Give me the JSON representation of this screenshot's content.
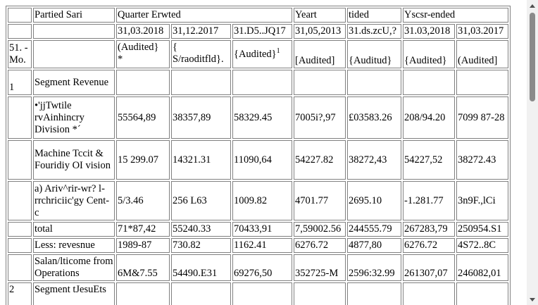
{
  "header": {
    "row1": [
      "",
      "Partied Sari",
      "Quarter Erwted",
      "Yeart",
      "tided",
      "Yscsr-ended"
    ],
    "row2": [
      "",
      "",
      "31,03.2018",
      "31,12.2017",
      "31.D5..JQ17",
      "31,05,2013",
      "31.ds.zcU,?",
      "31.03,2018",
      "31,03.2017"
    ],
    "row3": {
      "sno": "51. -\nMo.",
      "blank": "",
      "c1a": "(Audited}",
      "c1b": "*",
      "c2a": "{",
      "c2b": "S/raoditfld}.",
      "c3": "{Audited}",
      "c3sup": "1",
      "c4": "[Audited]",
      "c5": "{Auditud}",
      "c6": "{Audited}",
      "c7": "(Audited]"
    }
  },
  "rows": [
    {
      "sno": "1",
      "particular": "Segment Revenue",
      "values": [
        "",
        "",
        "",
        "",
        "",
        "",
        ""
      ]
    },
    {
      "sno": "",
      "particular": "•'jjTwtile rvAinhincry Division *´",
      "values": [
        "55564,89",
        "38357,89",
        "58329.45",
        "7005i?,97",
        "£03583.26",
        "208/94.20",
        "7099 87-28"
      ]
    },
    {
      "sno": "",
      "particular": "Machine Tccit & Fouridiy OI vision",
      "values": [
        "15 299.07",
        "14321.31",
        "11090,64",
        "54227.82",
        "38272,43",
        "54227,52",
        "38272.43"
      ]
    },
    {
      "sno": "",
      "particular": "a) Ariv^rir-wr? l-rrchriciic'gy Cent-c",
      "values": [
        "5/3.46",
        "256 L63",
        "1009.82",
        "4701.77",
        "2695.10",
        "-1.281.77",
        "3n9F.,lCi"
      ]
    },
    {
      "sno": "",
      "particular": "total",
      "values": [
        "71*87,42",
        "55240.33",
        "70433,91",
        "7,59002.56",
        "244555.79",
        "267283,79",
        "250954.S1"
      ]
    },
    {
      "sno": "",
      "particular": "Less: revesnue",
      "values": [
        "1989-87",
        "730.82",
        "1162.41",
        "6276.72",
        "4877,80",
        "6276.72",
        "4S72..8C"
      ]
    },
    {
      "sno": "",
      "particular": "Salan/lticome from Operations",
      "values": [
        "6M&7.55",
        "54490.E31",
        "69276,50",
        "352725-M",
        "2596:32.99",
        "261307,07",
        "246082,01"
      ]
    },
    {
      "sno": "2",
      "particular": "Segment tJesuEts",
      "values": [
        "",
        "",
        "",
        "",
        "",
        "",
        ""
      ]
    }
  ]
}
